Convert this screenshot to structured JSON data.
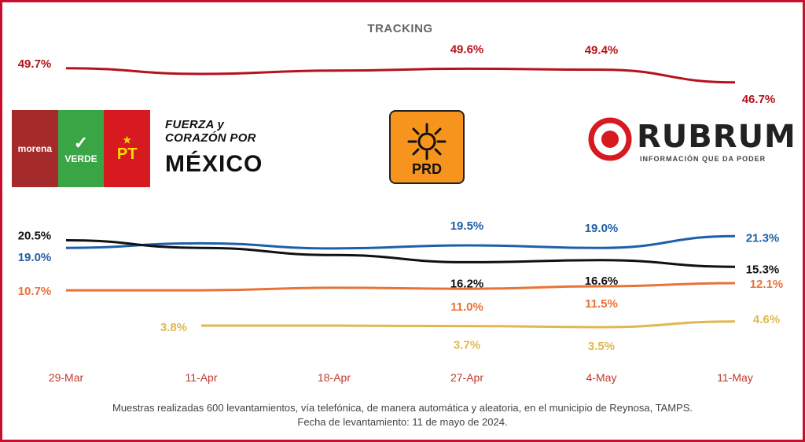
{
  "header": {
    "title": "TRACKING"
  },
  "logos": {
    "coalition": {
      "morena": "morena",
      "verde": "VERDE",
      "pt": "PT"
    },
    "fuerza": {
      "top": "FUERZA y CORAZÓN POR",
      "main": "MÉXICO"
    },
    "prd": {
      "label": "PRD"
    },
    "rubrum": {
      "name": "RUBRUM",
      "tagline": "INFORMACIÓN QUE DA PODER"
    }
  },
  "footer": {
    "line1": "Muestras realizadas 600 levantamientos, vía telefónica, de manera automática y aleatoria, en el municipio de Reynosa, TAMPS.",
    "line2": "Fecha de levantamiento: 11 de mayo de 2024."
  },
  "colors": {
    "red": "#b5121b",
    "blue": "#1f5fa8",
    "black": "#111111",
    "orange": "#e8733a",
    "yellow": "#e0b84f",
    "axis": "#c0392b"
  },
  "chart_data": {
    "type": "line",
    "categories": [
      "29-Mar",
      "11-Apr",
      "18-Apr",
      "27-Apr",
      "4-May",
      "11-May"
    ],
    "series": [
      {
        "name": "",
        "color": "#b5121b",
        "values": [
          49.7,
          48.5,
          49.2,
          49.6,
          49.4,
          46.7
        ],
        "labels": [
          "49.7%",
          "",
          "",
          "49.6%",
          "49.4%",
          "46.7%"
        ]
      },
      {
        "name": "",
        "color": "#1f5fa8",
        "values": [
          19.0,
          19.9,
          18.9,
          19.5,
          19.0,
          21.3
        ],
        "labels": [
          "19.0%",
          "",
          "",
          "19.5%",
          "19.0%",
          "21.3%"
        ]
      },
      {
        "name": "",
        "color": "#111111",
        "values": [
          20.5,
          19.0,
          17.6,
          16.2,
          16.6,
          15.3
        ],
        "labels": [
          "20.5%",
          "",
          "",
          "16.2%",
          "16.6%",
          "15.3%"
        ]
      },
      {
        "name": "",
        "color": "#e8733a",
        "values": [
          10.7,
          10.7,
          11.2,
          11.0,
          11.5,
          12.1
        ],
        "labels": [
          "10.7%",
          "",
          "",
          "11.0%",
          "11.5%",
          "12.1%"
        ]
      },
      {
        "name": "",
        "color": "#e0b84f",
        "values": [
          null,
          3.8,
          3.8,
          3.7,
          3.5,
          4.6
        ],
        "labels": [
          "",
          "3.8%",
          "",
          "3.7%",
          "3.5%",
          "4.6%"
        ]
      }
    ],
    "grid": false
  }
}
